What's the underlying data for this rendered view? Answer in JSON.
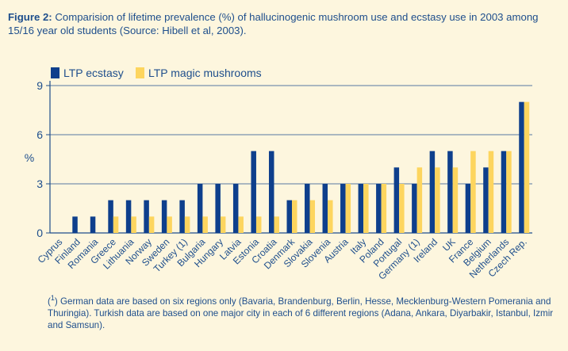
{
  "caption": {
    "label": "Figure 2:",
    "text": "Comparision of lifetime prevalence (%) of hallucinogenic mushroom use and ecstasy use in 2003 among 15/16 year old students (Source: Hibell et al, 2003)."
  },
  "footnote": {
    "sup": "1",
    "text": ") German data are based on six regions only (Bavaria, Brandenburg, Berlin, Hesse, Mecklenburg-Western Pomerania and Thuringia). Turkish data are based on one major city in each of 6 different regions (Adana, Ankara, Diyarbakir, Istanbul, Izmir and Samsun)."
  },
  "colors": {
    "ecstasy": "#0E3F8C",
    "mushrooms": "#FDD55E",
    "axis": "#1E4E8C",
    "grid": "#1E4E8C"
  },
  "chart_data": {
    "type": "bar",
    "title": "",
    "xlabel": "",
    "ylabel": "%",
    "ylim": [
      0,
      9
    ],
    "yticks": [
      0,
      3,
      6,
      9
    ],
    "grid": true,
    "legend": "top-left",
    "categories": [
      "Cyprus",
      "Finland",
      "Romania",
      "Greece",
      "Lithuania",
      "Norway",
      "Sweden",
      "Turkey (1)",
      "Bulgaria",
      "Hungary",
      "Latvia",
      "Estonia",
      "Croatia",
      "Denmark",
      "Slovakia",
      "Slovenia",
      "Austria",
      "Italy",
      "Poland",
      "Portugal",
      "Germany (1)",
      "Ireland",
      "UK",
      "France",
      "Belgium",
      "Netherlands",
      "Czech Rep."
    ],
    "series": [
      {
        "name": "LTP ecstasy",
        "values": [
          0,
          1,
          1,
          2,
          2,
          2,
          2,
          2,
          3,
          3,
          3,
          5,
          5,
          2,
          3,
          3,
          3,
          3,
          3,
          4,
          3,
          5,
          5,
          3,
          4,
          5,
          8
        ]
      },
      {
        "name": "LTP magic mushrooms",
        "values": [
          0,
          0,
          0,
          1,
          1,
          1,
          1,
          1,
          1,
          1,
          1,
          1,
          1,
          2,
          2,
          2,
          3,
          3,
          3,
          3,
          4,
          4,
          4,
          5,
          5,
          5,
          8
        ]
      }
    ]
  }
}
